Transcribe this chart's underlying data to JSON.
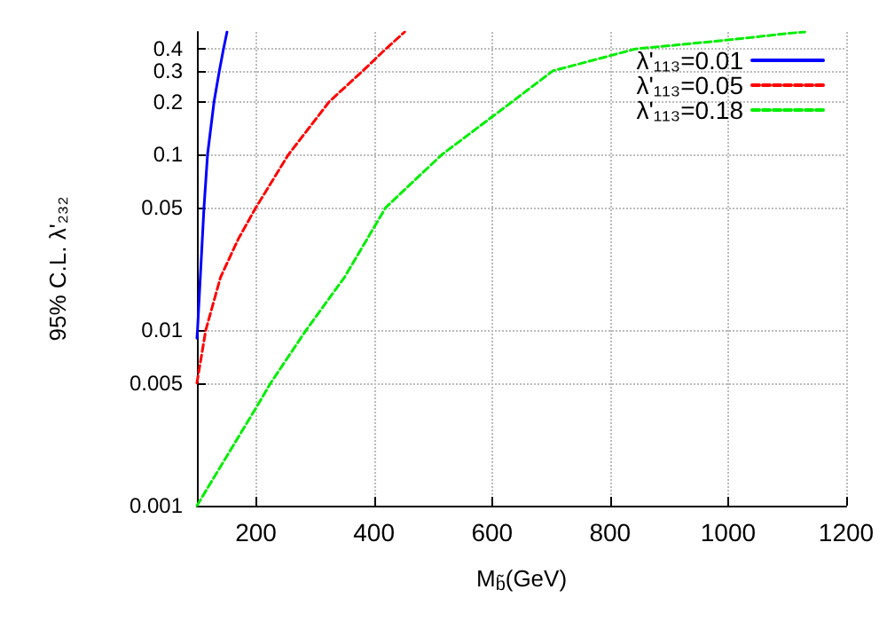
{
  "chart_data": {
    "type": "line",
    "xlabel": "M$_{b̃}$(GeV)",
    "ylabel": "95% C.L. λ'₂₃₂",
    "xlim": [
      100,
      1200
    ],
    "xticks": [
      200,
      400,
      600,
      800,
      1000,
      1200
    ],
    "ylim": [
      0.001,
      0.5
    ],
    "yticks": [
      0.001,
      0.005,
      0.01,
      0.05,
      0.1,
      0.2,
      0.3,
      0.4
    ],
    "log": "y",
    "grid": true,
    "legend": "top right",
    "marker": "none",
    "series": [
      {
        "name": "λ'₁₁₃=0.01",
        "color": "#0000ff",
        "line_style": "solid",
        "x": [
          100,
          101,
          112,
          118,
          129,
          138,
          145,
          151
        ],
        "values": [
          0.009,
          0.01,
          0.05,
          0.1,
          0.2,
          0.3,
          0.4,
          0.5
        ]
      },
      {
        "name": "λ'₁₁₃=0.05",
        "color": "#ff0000",
        "line_style": "dashed",
        "x": [
          100,
          115,
          140,
          170,
          200,
          255,
          324,
          381,
          420,
          452
        ],
        "values": [
          0.005,
          0.01,
          0.02,
          0.033,
          0.05,
          0.1,
          0.2,
          0.3,
          0.4,
          0.5
        ]
      },
      {
        "name": "λ'₁₁₃=0.18",
        "color": "#00ee00",
        "line_style": "dashed",
        "x": [
          100,
          200,
          225,
          285,
          350,
          420,
          515,
          634,
          703,
          843,
          1000,
          1100,
          1130
        ],
        "values": [
          0.001,
          0.0036,
          0.005,
          0.01,
          0.02,
          0.05,
          0.1,
          0.2,
          0.3,
          0.4,
          0.45,
          0.49,
          0.5
        ]
      }
    ]
  }
}
